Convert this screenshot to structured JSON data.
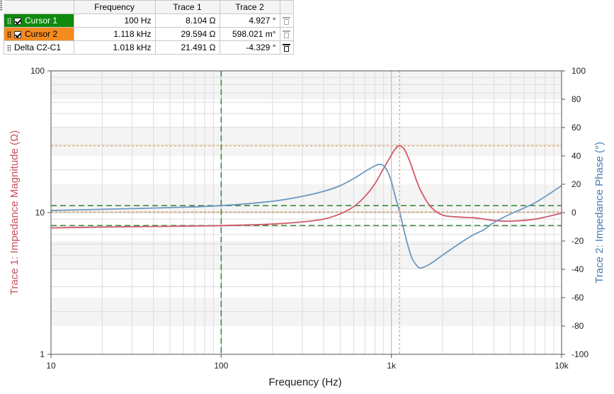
{
  "cursor_table": {
    "headers": [
      "",
      "Frequency",
      "Trace 1",
      "Trace 2"
    ],
    "rows": [
      {
        "name": "Cursor 1",
        "frequency": "100 Hz",
        "trace1": "8.104 Ω",
        "trace2": "4.927 °",
        "color": "#0e8a0e"
      },
      {
        "name": "Cursor 2",
        "frequency": "1.118 kHz",
        "trace1": "29.594 Ω",
        "trace2": "598.021 m°",
        "color": "#f58a1f"
      },
      {
        "name": "Delta C2-C1",
        "frequency": "1.018 kHz",
        "trace1": "21.491 Ω",
        "trace2": "-4.329 °"
      }
    ]
  },
  "chart_data": {
    "type": "line",
    "xlabel": "Frequency (Hz)",
    "ylabel_left": "Trace 1: Impedance Magnitude (Ω)",
    "ylabel_right": "Trace 2: Impedance Phase (°)",
    "x_scale": "log",
    "xlim": [
      10,
      10000
    ],
    "ylim_left": [
      1,
      100
    ],
    "y_left_scale": "log",
    "ylim_right": [
      -100,
      100
    ],
    "x_tick_labels": [
      "10",
      "100",
      "1k",
      "10k"
    ],
    "x_ticks": [
      10,
      100,
      1000,
      10000
    ],
    "y_left_tick_labels": [
      "1",
      "10",
      "100"
    ],
    "y_left_ticks": [
      1,
      10,
      100
    ],
    "y_right_ticks": [
      -100,
      -80,
      -60,
      -40,
      -20,
      0,
      20,
      40,
      60,
      80,
      100
    ],
    "y_right_tick_labels": [
      "-100",
      "-80",
      "-60",
      "-40",
      "-20",
      "0",
      "20",
      "40",
      "60",
      "80",
      "100"
    ],
    "grid": true,
    "series": [
      {
        "axis": "left",
        "color": "#d05a6a",
        "x": [
          10,
          20,
          50,
          100,
          200,
          300,
          400,
          500,
          600,
          700,
          800,
          900,
          1000,
          1050,
          1118,
          1200,
          1300,
          1400,
          1500,
          1700,
          2000,
          2500,
          3000,
          3500,
          4000,
          5000,
          7000,
          10000
        ],
        "y": [
          7.8,
          7.9,
          8.0,
          8.1,
          8.3,
          8.6,
          9.0,
          9.8,
          11.0,
          13.0,
          16.0,
          20.5,
          25.5,
          28.0,
          29.6,
          27.5,
          22.0,
          17.0,
          14.0,
          11.0,
          9.6,
          9.3,
          9.2,
          9.0,
          8.8,
          8.7,
          9.0,
          9.9
        ]
      },
      {
        "axis": "right",
        "color": "#6b97c2",
        "x": [
          10,
          20,
          50,
          100,
          200,
          300,
          400,
          500,
          600,
          700,
          800,
          850,
          900,
          950,
          1000,
          1050,
          1118,
          1200,
          1300,
          1400,
          1500,
          1700,
          2000,
          2500,
          3000,
          3500,
          4000,
          5000,
          7000,
          10000
        ],
        "y": [
          1.5,
          2.3,
          3.5,
          4.9,
          8.0,
          11.5,
          15.0,
          19.0,
          24.0,
          29.0,
          33.0,
          34.0,
          33.0,
          29.0,
          22.0,
          12.0,
          0.6,
          -15.0,
          -30.0,
          -37.0,
          -39.0,
          -36.0,
          -30.0,
          -22.0,
          -16.0,
          -12.0,
          -7.0,
          -1.0,
          7.0,
          19.0
        ]
      }
    ],
    "cursor_lines": [
      {
        "name": "Cursor 1",
        "axis": "x",
        "value": 100,
        "color": "#3c8a3c"
      },
      {
        "name": "Cursor 2",
        "axis": "x",
        "value": 1118,
        "color": "#f5a04a"
      }
    ],
    "cursor_h_lines": [
      {
        "axis": "left",
        "value": 8.104,
        "color": "#3c8a3c"
      },
      {
        "axis": "right",
        "value": 4.927,
        "color": "#3c8a3c"
      },
      {
        "axis": "left",
        "value": 29.594,
        "color": "#f5a04a"
      },
      {
        "axis": "right",
        "value": 0.598,
        "color": "#f5a04a"
      }
    ]
  }
}
